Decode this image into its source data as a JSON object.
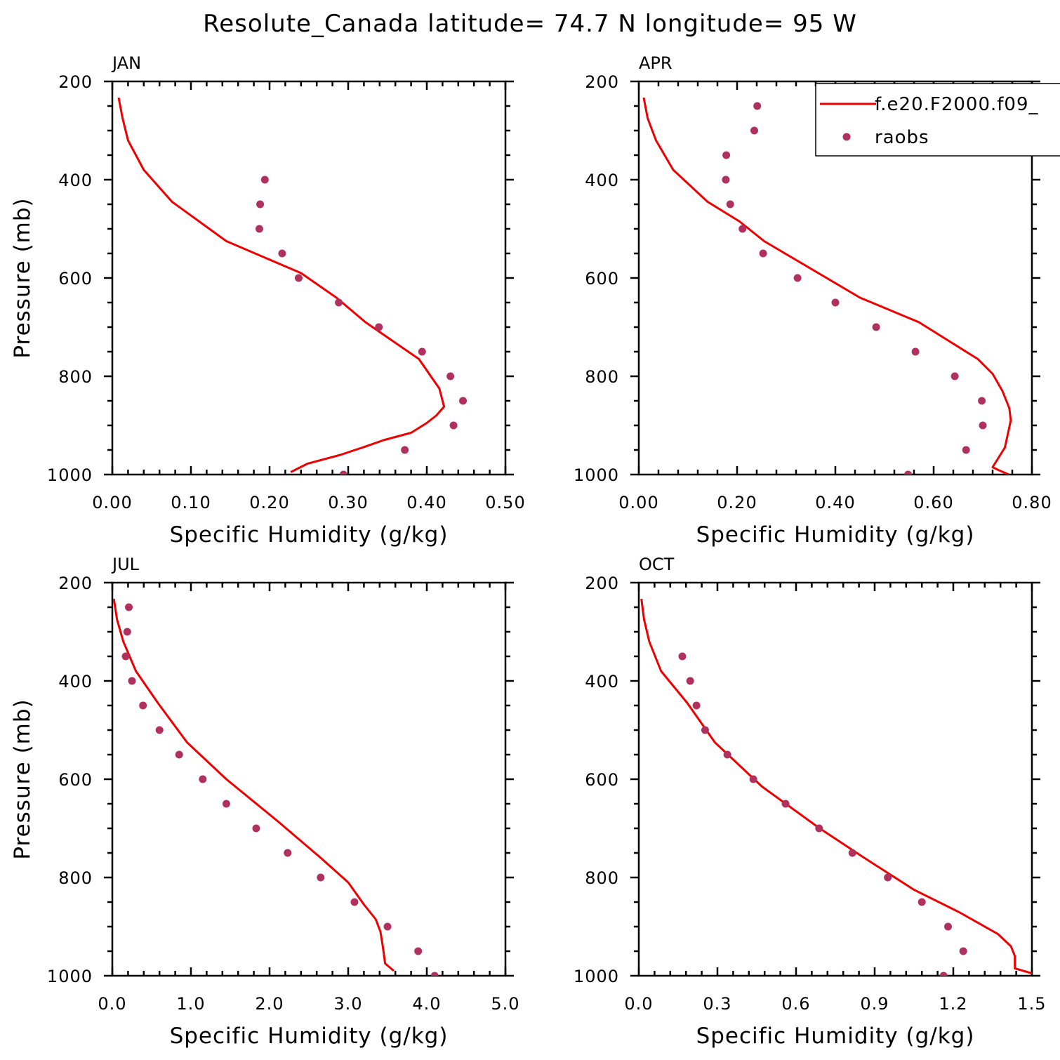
{
  "title": "Resolute_Canada  latitude= 74.7 N longitude= 95 W",
  "colors": {
    "model": "#ee0000",
    "raobs": "#b0305e",
    "frame": "#000000"
  },
  "legend": {
    "model_label": "f.e20.F2000.f09_",
    "obs_label": "raobs"
  },
  "chart_data": [
    {
      "type": "line",
      "panel": "JAN",
      "xlabel": "Specific Humidity (g/kg)",
      "ylabel": "Pressure (mb)",
      "xlim": [
        0,
        0.5
      ],
      "ylim": [
        200,
        1000
      ],
      "y_inverted": true,
      "xticks": [
        "0.00",
        "0.10",
        "0.20",
        "0.30",
        "0.40",
        "0.50"
      ],
      "yticks": [
        "200",
        "400",
        "600",
        "800",
        "1000"
      ],
      "series": [
        {
          "name": "f.e20.F2000.f09_",
          "kind": "line",
          "x": [
            0.227,
            0.248,
            0.29,
            0.322,
            0.345,
            0.38,
            0.4,
            0.412,
            0.422,
            0.416,
            0.39,
            0.322,
            0.285,
            0.24,
            0.145,
            0.076,
            0.04,
            0.02,
            0.013,
            0.008
          ],
          "y": [
            995,
            978,
            960,
            943,
            930,
            915,
            895,
            880,
            862,
            825,
            765,
            690,
            640,
            590,
            525,
            445,
            380,
            320,
            275,
            233
          ]
        },
        {
          "name": "raobs",
          "kind": "scatter",
          "x": [
            0.294,
            0.372,
            0.434,
            0.446,
            0.43,
            0.394,
            0.339,
            0.288,
            0.237,
            0.216,
            0.187,
            0.188,
            0.194
          ],
          "y": [
            1000,
            950,
            900,
            850,
            800,
            750,
            700,
            650,
            600,
            550,
            500,
            450,
            400
          ]
        }
      ]
    },
    {
      "type": "line",
      "panel": "APR",
      "xlabel": "Specific Humidity (g/kg)",
      "ylabel": "",
      "xlim": [
        0,
        0.8
      ],
      "ylim": [
        200,
        1000
      ],
      "y_inverted": true,
      "xticks": [
        "0.00",
        "0.20",
        "0.40",
        "0.60",
        "0.80"
      ],
      "yticks": [
        "200",
        "400",
        "600",
        "800",
        "1000"
      ],
      "legend_position": "top-right",
      "series": [
        {
          "name": "f.e20.F2000.f09_",
          "kind": "line",
          "x": [
            0.753,
            0.73,
            0.72,
            0.745,
            0.757,
            0.754,
            0.74,
            0.72,
            0.69,
            0.57,
            0.45,
            0.255,
            0.205,
            0.14,
            0.07,
            0.035,
            0.018,
            0.01
          ],
          "y": [
            1000,
            990,
            985,
            945,
            890,
            865,
            830,
            795,
            765,
            690,
            640,
            525,
            485,
            445,
            380,
            320,
            275,
            233
          ]
        },
        {
          "name": "raobs",
          "kind": "scatter",
          "x": [
            0.548,
            0.666,
            0.7,
            0.698,
            0.643,
            0.563,
            0.483,
            0.4,
            0.323,
            0.253,
            0.211,
            0.186,
            0.177,
            0.178,
            0.235,
            0.241
          ],
          "y": [
            1000,
            950,
            900,
            850,
            800,
            750,
            700,
            650,
            600,
            550,
            500,
            450,
            400,
            350,
            300,
            250
          ]
        }
      ]
    },
    {
      "type": "line",
      "panel": "JUL",
      "xlabel": "Specific Humidity (g/kg)",
      "ylabel": "Pressure (mb)",
      "xlim": [
        0,
        5.0
      ],
      "ylim": [
        200,
        1000
      ],
      "y_inverted": true,
      "xticks": [
        "0.0",
        "1.0",
        "2.0",
        "3.0",
        "4.0",
        "5.0"
      ],
      "yticks": [
        "200",
        "400",
        "600",
        "800",
        "1000"
      ],
      "series": [
        {
          "name": "f.e20.F2000.f09_",
          "kind": "line",
          "x": [
            3.58,
            3.47,
            3.44,
            3.41,
            3.35,
            3.2,
            3.0,
            2.65,
            2.1,
            1.45,
            0.95,
            0.58,
            0.3,
            0.14,
            0.06,
            0.02
          ],
          "y": [
            990,
            975,
            940,
            910,
            885,
            855,
            810,
            760,
            685,
            600,
            525,
            445,
            380,
            320,
            275,
            233
          ]
        },
        {
          "name": "raobs",
          "kind": "scatter",
          "x": [
            4.1,
            3.89,
            3.5,
            3.08,
            2.65,
            2.23,
            1.83,
            1.45,
            1.15,
            0.85,
            0.6,
            0.39,
            0.25,
            0.17,
            0.19,
            0.21
          ],
          "y": [
            1000,
            950,
            900,
            850,
            800,
            750,
            700,
            650,
            600,
            550,
            500,
            450,
            400,
            350,
            300,
            250
          ]
        }
      ]
    },
    {
      "type": "line",
      "panel": "OCT",
      "xlabel": "Specific Humidity (g/kg)",
      "ylabel": "",
      "xlim": [
        0,
        1.5
      ],
      "ylim": [
        200,
        1000
      ],
      "y_inverted": true,
      "xticks": [
        "0.0",
        "0.3",
        "0.6",
        "0.9",
        "1.2",
        "1.5"
      ],
      "yticks": [
        "200",
        "400",
        "600",
        "800",
        "1000"
      ],
      "series": [
        {
          "name": "f.e20.F2000.f09_",
          "kind": "line",
          "x": [
            1.5,
            1.435,
            1.435,
            1.42,
            1.37,
            1.22,
            1.05,
            0.86,
            0.69,
            0.47,
            0.29,
            0.185,
            0.085,
            0.04,
            0.02,
            0.01
          ],
          "y": [
            995,
            985,
            960,
            940,
            915,
            870,
            825,
            760,
            700,
            615,
            525,
            445,
            380,
            320,
            275,
            233
          ]
        },
        {
          "name": "raobs",
          "kind": "scatter",
          "x": [
            1.163,
            1.238,
            1.18,
            1.08,
            0.95,
            0.815,
            0.688,
            0.56,
            0.437,
            0.338,
            0.253,
            0.22,
            0.196,
            0.166
          ],
          "y": [
            1000,
            950,
            900,
            850,
            800,
            750,
            700,
            650,
            600,
            550,
            500,
            450,
            400,
            350
          ]
        }
      ]
    }
  ]
}
